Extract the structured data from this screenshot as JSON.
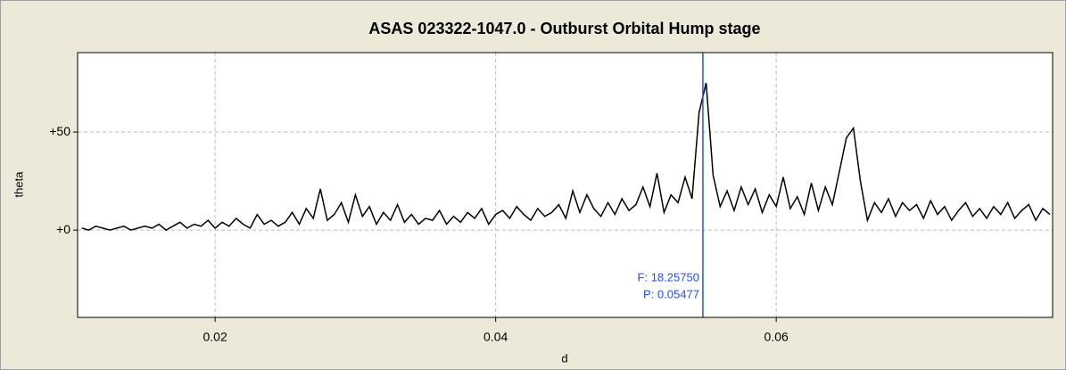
{
  "chart_data": {
    "type": "line",
    "title": "ASAS 023322-1047.0  -  Outburst Orbital Hump stage",
    "x_label": "d",
    "y_label": "theta",
    "color": "#000000",
    "grid": true,
    "xlim": [
      0.0102,
      0.0797
    ],
    "ylim": [
      -44.5,
      90.5
    ],
    "xticks": [
      0.02,
      0.04,
      0.06
    ],
    "yticks": [
      {
        "value": 0,
        "label": "+0"
      },
      {
        "value": 50,
        "label": "+50"
      }
    ],
    "cursor": {
      "x": 0.05477,
      "color": "#1f4fff",
      "labels": [
        "F: 18.25750",
        "P: 0.05477"
      ]
    },
    "x": [
      0.0105,
      0.011,
      0.0115,
      0.012,
      0.0125,
      0.013,
      0.0135,
      0.014,
      0.0145,
      0.015,
      0.0155,
      0.016,
      0.0165,
      0.017,
      0.0175,
      0.018,
      0.0185,
      0.019,
      0.0195,
      0.02,
      0.0205,
      0.021,
      0.0215,
      0.022,
      0.0225,
      0.023,
      0.0235,
      0.024,
      0.0245,
      0.025,
      0.0255,
      0.026,
      0.0265,
      0.027,
      0.0275,
      0.028,
      0.0285,
      0.029,
      0.0295,
      0.03,
      0.0305,
      0.031,
      0.0315,
      0.032,
      0.0325,
      0.033,
      0.0335,
      0.034,
      0.0345,
      0.035,
      0.0355,
      0.036,
      0.0365,
      0.037,
      0.0375,
      0.038,
      0.0385,
      0.039,
      0.0395,
      0.04,
      0.0405,
      0.041,
      0.0415,
      0.042,
      0.0425,
      0.043,
      0.0435,
      0.044,
      0.0445,
      0.045,
      0.0455,
      0.046,
      0.0465,
      0.047,
      0.0475,
      0.048,
      0.0485,
      0.049,
      0.0495,
      0.05,
      0.0505,
      0.051,
      0.0515,
      0.052,
      0.0525,
      0.053,
      0.0535,
      0.054,
      0.0545,
      0.055,
      0.0555,
      0.056,
      0.0565,
      0.057,
      0.0575,
      0.058,
      0.0585,
      0.059,
      0.0595,
      0.06,
      0.0605,
      0.061,
      0.0615,
      0.062,
      0.0625,
      0.063,
      0.0635,
      0.064,
      0.0645,
      0.065,
      0.0655,
      0.066,
      0.0665,
      0.067,
      0.0675,
      0.068,
      0.0685,
      0.069,
      0.0695,
      0.07,
      0.0705,
      0.071,
      0.0715,
      0.072,
      0.0725,
      0.073,
      0.0735,
      0.074,
      0.0745,
      0.075,
      0.0755,
      0.076,
      0.0765,
      0.077,
      0.0775,
      0.078,
      0.0785,
      0.079,
      0.0795
    ],
    "values": [
      1,
      0,
      2,
      1,
      0,
      1,
      2,
      0,
      1,
      2,
      1,
      3,
      0,
      2,
      4,
      1,
      3,
      2,
      5,
      1,
      4,
      2,
      6,
      3,
      1,
      8,
      3,
      5,
      2,
      4,
      9,
      3,
      11,
      6,
      21,
      5,
      8,
      14,
      4,
      18,
      7,
      12,
      3,
      9,
      5,
      13,
      4,
      8,
      3,
      6,
      5,
      10,
      3,
      7,
      4,
      9,
      6,
      11,
      3,
      8,
      10,
      6,
      12,
      8,
      5,
      11,
      7,
      9,
      13,
      6,
      20,
      9,
      18,
      11,
      7,
      14,
      8,
      16,
      10,
      13,
      22,
      12,
      29,
      9,
      18,
      14,
      27,
      16,
      60,
      75,
      28,
      12,
      20,
      10,
      22,
      13,
      21,
      9,
      18,
      12,
      27,
      11,
      17,
      8,
      24,
      10,
      22,
      13,
      30,
      47,
      52,
      25,
      5,
      14,
      9,
      16,
      7,
      14,
      10,
      13,
      6,
      15,
      8,
      12,
      5,
      10,
      14,
      7,
      11,
      6,
      12,
      8,
      14,
      6,
      10,
      13,
      5,
      11,
      8
    ]
  }
}
